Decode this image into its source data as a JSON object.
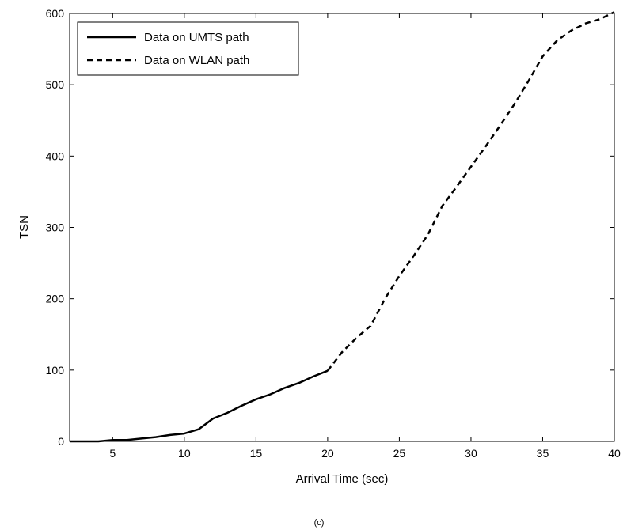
{
  "chart_data": {
    "type": "line",
    "xlabel": "Arrival Time (sec)",
    "ylabel": "TSN",
    "caption": "(c)",
    "xlim": [
      2,
      40
    ],
    "ylim": [
      0,
      600
    ],
    "xticks": [
      5,
      10,
      15,
      20,
      25,
      30,
      35,
      40
    ],
    "yticks": [
      0,
      100,
      200,
      300,
      400,
      500,
      600
    ],
    "grid": false,
    "legend_position": "top-left",
    "series": [
      {
        "name": "Data on UMTS path",
        "style": "solid",
        "color": "#000000",
        "x": [
          2,
          3,
          4,
          5,
          6,
          7,
          8,
          9,
          10,
          11,
          12,
          13,
          14,
          15,
          16,
          17,
          18,
          19,
          20
        ],
        "y": [
          0,
          0,
          0,
          2,
          2,
          4,
          6,
          9,
          11,
          17,
          32,
          40,
          50,
          59,
          66,
          75,
          82,
          91,
          99
        ]
      },
      {
        "name": "Data on WLAN path",
        "style": "dashed",
        "color": "#000000",
        "x": [
          20,
          21,
          22,
          23,
          24,
          25,
          26,
          27,
          28,
          29,
          30,
          31,
          32,
          33,
          34,
          35,
          36,
          37,
          38,
          39,
          40
        ],
        "y": [
          99,
          125,
          145,
          162,
          200,
          232,
          260,
          290,
          330,
          357,
          385,
          413,
          442,
          472,
          505,
          540,
          562,
          576,
          586,
          592,
          602
        ]
      }
    ]
  }
}
